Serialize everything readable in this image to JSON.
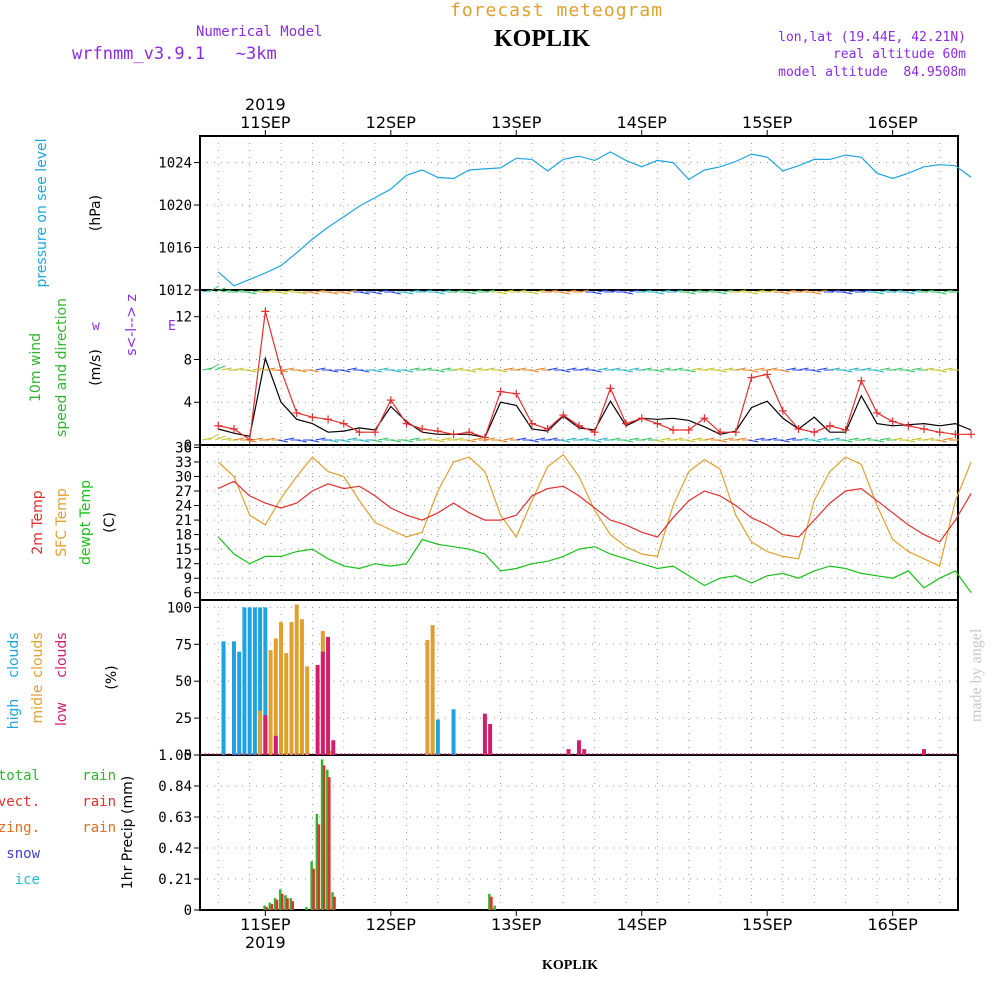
{
  "header": {
    "center_title": "forecast meteogram",
    "station": "KOPLIK",
    "model_label": "Numerical Model",
    "model_name": "wrfnmm_v3.9.1   ~3km",
    "lonlat": "lon,lat (19.44E, 42.21N)",
    "real_alt": "real altitude 60m",
    "model_alt": "model altitude  84.9508m",
    "year": "2019",
    "credit": "made by angel",
    "footer_station": "KOPLIK"
  },
  "colors": {
    "pressure": "#1fa3e0",
    "wind": "#2fb52f",
    "purple": "#8a2be2",
    "t2m": "#e03030",
    "sfc": "#e0a030",
    "dew": "#18c018",
    "high": "#1fa3e0",
    "mid": "#e0a030",
    "low": "#d0206a",
    "rain_total": "#2fb52f",
    "rain_conv": "#e03030",
    "rain_frz": "#e07020",
    "snow": "#4040d0",
    "ice": "#20c0d0",
    "credit": "#c8c8c8"
  },
  "chart_data": [
    {
      "type": "line",
      "title": "pressure on see level",
      "ylabel": "(hPa)",
      "ylim": [
        1012,
        1026.5
      ],
      "yticks": [
        1012,
        1016,
        1020,
        1024
      ],
      "x_hours": [
        0,
        3,
        6,
        9,
        12,
        15,
        18,
        21,
        24,
        27,
        30,
        33,
        36,
        39,
        42,
        45,
        48,
        51,
        54,
        57,
        60,
        63,
        66,
        69,
        72,
        75,
        78,
        81,
        84,
        87,
        90,
        93,
        96,
        99,
        102,
        105,
        108,
        111,
        114,
        117,
        120,
        123,
        126,
        129,
        132,
        135,
        138,
        141,
        144
      ],
      "values": [
        1013.7,
        1012.4,
        1013.0,
        1013.6,
        1014.3,
        1015.5,
        1016.8,
        1017.9,
        1018.9,
        1019.9,
        1020.7,
        1021.5,
        1022.8,
        1023.3,
        1022.6,
        1022.5,
        1023.3,
        1023.4,
        1023.5,
        1024.4,
        1024.3,
        1023.2,
        1024.3,
        1024.6,
        1024.2,
        1025.0,
        1024.2,
        1023.6,
        1024.2,
        1024.0,
        1022.4,
        1023.3,
        1023.6,
        1024.1,
        1024.8,
        1024.5,
        1023.2,
        1023.7,
        1024.3,
        1024.3,
        1024.7,
        1024.5,
        1023.0,
        1022.5,
        1023.0,
        1023.6,
        1023.8,
        1023.7,
        1022.6
      ]
    },
    {
      "type": "line",
      "title": "10m wind speed and direction",
      "ylabel": "(m/s)",
      "ylim": [
        0,
        14.5
      ],
      "yticks": [
        0,
        4,
        8,
        12
      ],
      "x_hours": [
        0,
        3,
        6,
        9,
        12,
        15,
        18,
        21,
        24,
        27,
        30,
        33,
        36,
        39,
        42,
        45,
        48,
        51,
        54,
        57,
        60,
        63,
        66,
        69,
        72,
        75,
        78,
        81,
        84,
        87,
        90,
        93,
        96,
        99,
        102,
        105,
        108,
        111,
        114,
        117,
        120,
        123,
        126,
        129,
        132,
        135,
        138,
        141,
        144
      ],
      "series": [
        {
          "name": "speed",
          "values": [
            1.8,
            1.5,
            0.5,
            12.5,
            7.0,
            3.0,
            2.6,
            2.4,
            2.0,
            1.2,
            1.2,
            4.2,
            2.0,
            1.5,
            1.3,
            1.0,
            1.2,
            0.7,
            5.0,
            4.8,
            2.0,
            1.5,
            2.8,
            1.8,
            1.2,
            5.3,
            2.0,
            2.5,
            2.0,
            1.4,
            1.4,
            2.5,
            1.2,
            1.2,
            6.3,
            6.6,
            3.2,
            1.5,
            1.2,
            1.8,
            1.4,
            6.0,
            3.0,
            2.2,
            1.8,
            1.5,
            1.2,
            1.0,
            1.0
          ]
        },
        {
          "name": "gust",
          "values": [
            1.5,
            1.1,
            0.8,
            8.1,
            4.0,
            2.4,
            2.0,
            1.2,
            1.3,
            1.6,
            1.4,
            3.6,
            2.2,
            1.2,
            1.0,
            1.0,
            1.0,
            0.7,
            4.0,
            3.7,
            1.5,
            1.3,
            2.7,
            1.6,
            1.4,
            4.1,
            1.8,
            2.5,
            2.4,
            2.5,
            2.3,
            1.7,
            1.0,
            1.3,
            3.5,
            4.1,
            2.5,
            1.5,
            2.6,
            1.2,
            1.2,
            4.6,
            2.0,
            1.8,
            1.9,
            2.0,
            1.8,
            2.0,
            1.4
          ]
        }
      ]
    },
    {
      "type": "line",
      "ylabel": "(C)",
      "ylim": [
        4.5,
        36.5
      ],
      "yticks": [
        6,
        9,
        12,
        15,
        18,
        21,
        24,
        27,
        30,
        33,
        36
      ],
      "x_hours": [
        0,
        3,
        6,
        9,
        12,
        15,
        18,
        21,
        24,
        27,
        30,
        33,
        36,
        39,
        42,
        45,
        48,
        51,
        54,
        57,
        60,
        63,
        66,
        69,
        72,
        75,
        78,
        81,
        84,
        87,
        90,
        93,
        96,
        99,
        102,
        105,
        108,
        111,
        114,
        117,
        120,
        123,
        126,
        129,
        132,
        135,
        138,
        141,
        144
      ],
      "series": [
        {
          "name": "2m Temp",
          "values": [
            27.5,
            29.0,
            26.0,
            24.5,
            23.5,
            24.5,
            27.0,
            28.5,
            27.5,
            28.0,
            26.0,
            23.5,
            22.0,
            21.0,
            22.5,
            24.5,
            22.5,
            21.0,
            21.0,
            22.0,
            26.0,
            27.5,
            28.0,
            26.0,
            23.5,
            21.0,
            20.0,
            18.5,
            17.5,
            21.5,
            25.0,
            27.0,
            26.0,
            24.0,
            21.5,
            20.0,
            18.0,
            17.5,
            21.0,
            24.5,
            27.0,
            27.5,
            25.0,
            22.5,
            20.0,
            18.0,
            16.5,
            21.0,
            26.5
          ]
        },
        {
          "name": "SFC Temp",
          "values": [
            33.0,
            30.0,
            22.0,
            20.0,
            25.5,
            30.0,
            34.0,
            31.0,
            30.0,
            25.0,
            20.5,
            19.0,
            17.5,
            18.5,
            27.0,
            33.0,
            34.0,
            31.0,
            22.0,
            17.5,
            25.0,
            32.0,
            34.5,
            30.0,
            23.0,
            18.0,
            15.5,
            14.0,
            13.5,
            24.0,
            31.0,
            33.5,
            31.5,
            22.0,
            16.5,
            14.5,
            13.5,
            13.0,
            25.0,
            31.0,
            34.0,
            32.5,
            24.0,
            17.0,
            14.5,
            13.0,
            11.5,
            25.0,
            33.0
          ]
        },
        {
          "name": "dewpt Temp",
          "values": [
            17.5,
            14.0,
            12.0,
            13.5,
            13.5,
            14.5,
            15.0,
            13.0,
            11.5,
            11.0,
            12.0,
            11.5,
            12.0,
            17.0,
            16.0,
            15.5,
            15.0,
            14.0,
            10.5,
            11.0,
            12.0,
            12.5,
            13.5,
            15.0,
            15.5,
            14.0,
            13.0,
            12.0,
            11.0,
            11.5,
            9.5,
            7.5,
            9.0,
            9.5,
            8.0,
            9.5,
            10.0,
            9.0,
            10.5,
            11.5,
            11.0,
            10.0,
            9.5,
            9.0,
            10.5,
            7.0,
            9.0,
            10.5,
            6.0
          ]
        }
      ]
    },
    {
      "type": "bar",
      "ylabel": "(%)",
      "ylim": [
        0,
        105
      ],
      "yticks": [
        0,
        25,
        50,
        75,
        100
      ],
      "series": [
        {
          "name": "high",
          "points": [
            [
              1,
              77
            ],
            [
              3,
              77
            ],
            [
              4,
              70
            ],
            [
              5,
              100
            ],
            [
              6,
              100
            ],
            [
              7,
              100
            ],
            [
              8,
              100
            ],
            [
              9,
              100
            ],
            [
              42,
              24
            ],
            [
              45,
              31
            ]
          ]
        },
        {
          "name": "midle",
          "points": [
            [
              8,
              30
            ],
            [
              10,
              71
            ],
            [
              11,
              79
            ],
            [
              12,
              90
            ],
            [
              13,
              69
            ],
            [
              14,
              90
            ],
            [
              15,
              102
            ],
            [
              16,
              92
            ],
            [
              17,
              60
            ],
            [
              20,
              84
            ],
            [
              21,
              3
            ],
            [
              21.5,
              3
            ],
            [
              40,
              78
            ],
            [
              41,
              88
            ]
          ]
        },
        {
          "name": "low",
          "points": [
            [
              9,
              27
            ],
            [
              11,
              13
            ],
            [
              19,
              61
            ],
            [
              20,
              70
            ],
            [
              21,
              80
            ],
            [
              22,
              10
            ],
            [
              51,
              28
            ],
            [
              52,
              21
            ],
            [
              67,
              4
            ],
            [
              69,
              10
            ],
            [
              70,
              4
            ],
            [
              135,
              4
            ]
          ]
        }
      ]
    },
    {
      "type": "bar",
      "ylabel": "1hr Precip (mm)",
      "ylim": [
        0,
        1.05
      ],
      "yticks": [
        0,
        0.21,
        0.42,
        0.63,
        0.84,
        1.05
      ],
      "series": [
        {
          "name": "total rain",
          "points": [
            [
              9,
              0.03
            ],
            [
              10,
              0.05
            ],
            [
              11,
              0.08
            ],
            [
              12,
              0.14
            ],
            [
              13,
              0.1
            ],
            [
              14,
              0.08
            ],
            [
              17,
              0.02
            ],
            [
              18,
              0.33
            ],
            [
              19,
              0.65
            ],
            [
              20,
              1.02
            ],
            [
              21,
              0.95
            ],
            [
              22,
              0.12
            ],
            [
              52,
              0.11
            ],
            [
              53,
              0.03
            ]
          ]
        },
        {
          "name": "convect. rain",
          "points": [
            [
              9,
              0.02
            ],
            [
              10,
              0.04
            ],
            [
              11,
              0.07
            ],
            [
              12,
              0.11
            ],
            [
              13,
              0.08
            ],
            [
              14,
              0.06
            ],
            [
              18,
              0.28
            ],
            [
              19,
              0.58
            ],
            [
              20,
              0.98
            ],
            [
              21,
              0.9
            ],
            [
              22,
              0.09
            ],
            [
              52,
              0.09
            ]
          ]
        }
      ]
    }
  ],
  "panels": [
    {
      "top": 136,
      "bottom": 290,
      "labels": [
        {
          "t": "pressure on see level",
          "c": "pressure",
          "x": 46
        },
        {
          "t": "(hPa)",
          "c": "black",
          "x": 100
        }
      ]
    },
    {
      "top": 290,
      "bottom": 445,
      "labels": [
        {
          "t": "10m wind",
          "c": "wind",
          "x": 40
        },
        {
          "t": "speed and direction",
          "c": "wind",
          "x": 66
        },
        {
          "t": "(m/s)",
          "c": "black",
          "x": 100
        }
      ]
    },
    {
      "top": 445,
      "bottom": 600,
      "labels": [
        {
          "t": "2m Temp",
          "c": "t2m",
          "x": 42
        },
        {
          "t": "SFC Temp",
          "c": "sfc",
          "x": 66
        },
        {
          "t": "dewpt Temp",
          "c": "dew",
          "x": 90
        },
        {
          "t": "(C)",
          "c": "black",
          "x": 114
        }
      ]
    },
    {
      "top": 600,
      "bottom": 755,
      "labels": [
        {
          "t": "(%)",
          "c": "black",
          "x": 116
        }
      ]
    },
    {
      "top": 755,
      "bottom": 910,
      "labels": [
        {
          "t": "1hr Precip (mm)",
          "c": "black",
          "x": 132
        }
      ]
    }
  ],
  "cloud_legend": {
    "col1": [
      {
        "t": "high",
        "c": "high"
      },
      {
        "t": "midle",
        "c": "mid"
      },
      {
        "t": "low",
        "c": "low"
      }
    ],
    "col2": [
      {
        "t": "clouds",
        "c": "high"
      },
      {
        "t": "clouds",
        "c": "mid"
      },
      {
        "t": "clouds",
        "c": "low"
      }
    ]
  },
  "rain_legend": [
    {
      "a": "total",
      "b": "rain",
      "c": "rain_total"
    },
    {
      "a": "convect.",
      "b": "rain",
      "c": "rain_conv"
    },
    {
      "a": "frizing.",
      "b": "rain",
      "c": "rain_frz"
    },
    {
      "a": "snow",
      "b": "",
      "c": "snow"
    },
    {
      "a": "ice",
      "b": "",
      "c": "ice"
    }
  ],
  "wind_arrow_labels": {
    "w": "w",
    "s": "s<",
    "n": "-",
    "sep": "l",
    "e": "->",
    "z": "z",
    "e2": "E"
  },
  "days": [
    {
      "label": "11SEP",
      "h": 9
    },
    {
      "label": "12SEP",
      "h": 33
    },
    {
      "label": "13SEP",
      "h": 57
    },
    {
      "label": "14SEP",
      "h": 81
    },
    {
      "label": "15SEP",
      "h": 105
    },
    {
      "label": "16SEP",
      "h": 129
    }
  ],
  "x_range_hours": [
    -3.5,
    141.5
  ]
}
